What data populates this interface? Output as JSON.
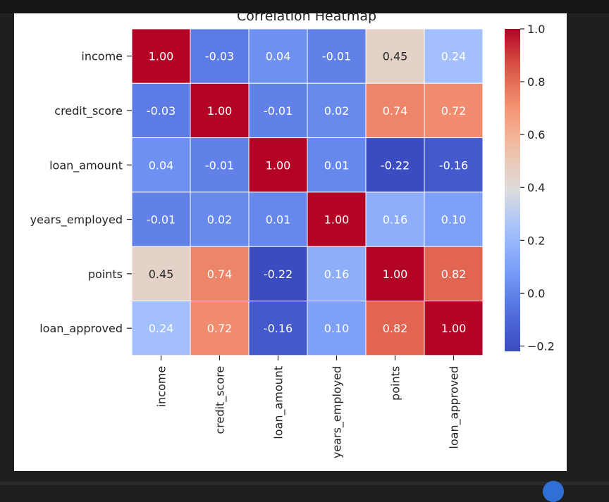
{
  "chart_data": {
    "type": "heatmap",
    "title": "Correlation Heatmap",
    "rows": [
      "income",
      "credit_score",
      "loan_amount",
      "years_employed",
      "points",
      "loan_approved"
    ],
    "columns": [
      "income",
      "credit_score",
      "loan_amount",
      "years_employed",
      "points",
      "loan_approved"
    ],
    "values": [
      [
        1.0,
        -0.03,
        0.04,
        -0.01,
        0.45,
        0.24
      ],
      [
        -0.03,
        1.0,
        -0.01,
        0.02,
        0.74,
        0.72
      ],
      [
        0.04,
        -0.01,
        1.0,
        0.01,
        -0.22,
        -0.16
      ],
      [
        -0.01,
        0.02,
        0.01,
        1.0,
        0.16,
        0.1
      ],
      [
        0.45,
        0.74,
        -0.22,
        0.16,
        1.0,
        0.82
      ],
      [
        0.24,
        0.72,
        -0.16,
        0.1,
        0.82,
        1.0
      ]
    ],
    "colormap": "coolwarm",
    "vmin": -0.22,
    "vmax": 1.0,
    "annotation_format": "0.00",
    "colorbar_ticks": [
      "1.0",
      "0.8",
      "0.6",
      "0.4",
      "0.2",
      "0.0",
      "−0.2"
    ],
    "colorbar_tick_values": [
      1.0,
      0.8,
      0.6,
      0.4,
      0.2,
      0.0,
      -0.2
    ],
    "legend_position": "right",
    "grid": false
  }
}
